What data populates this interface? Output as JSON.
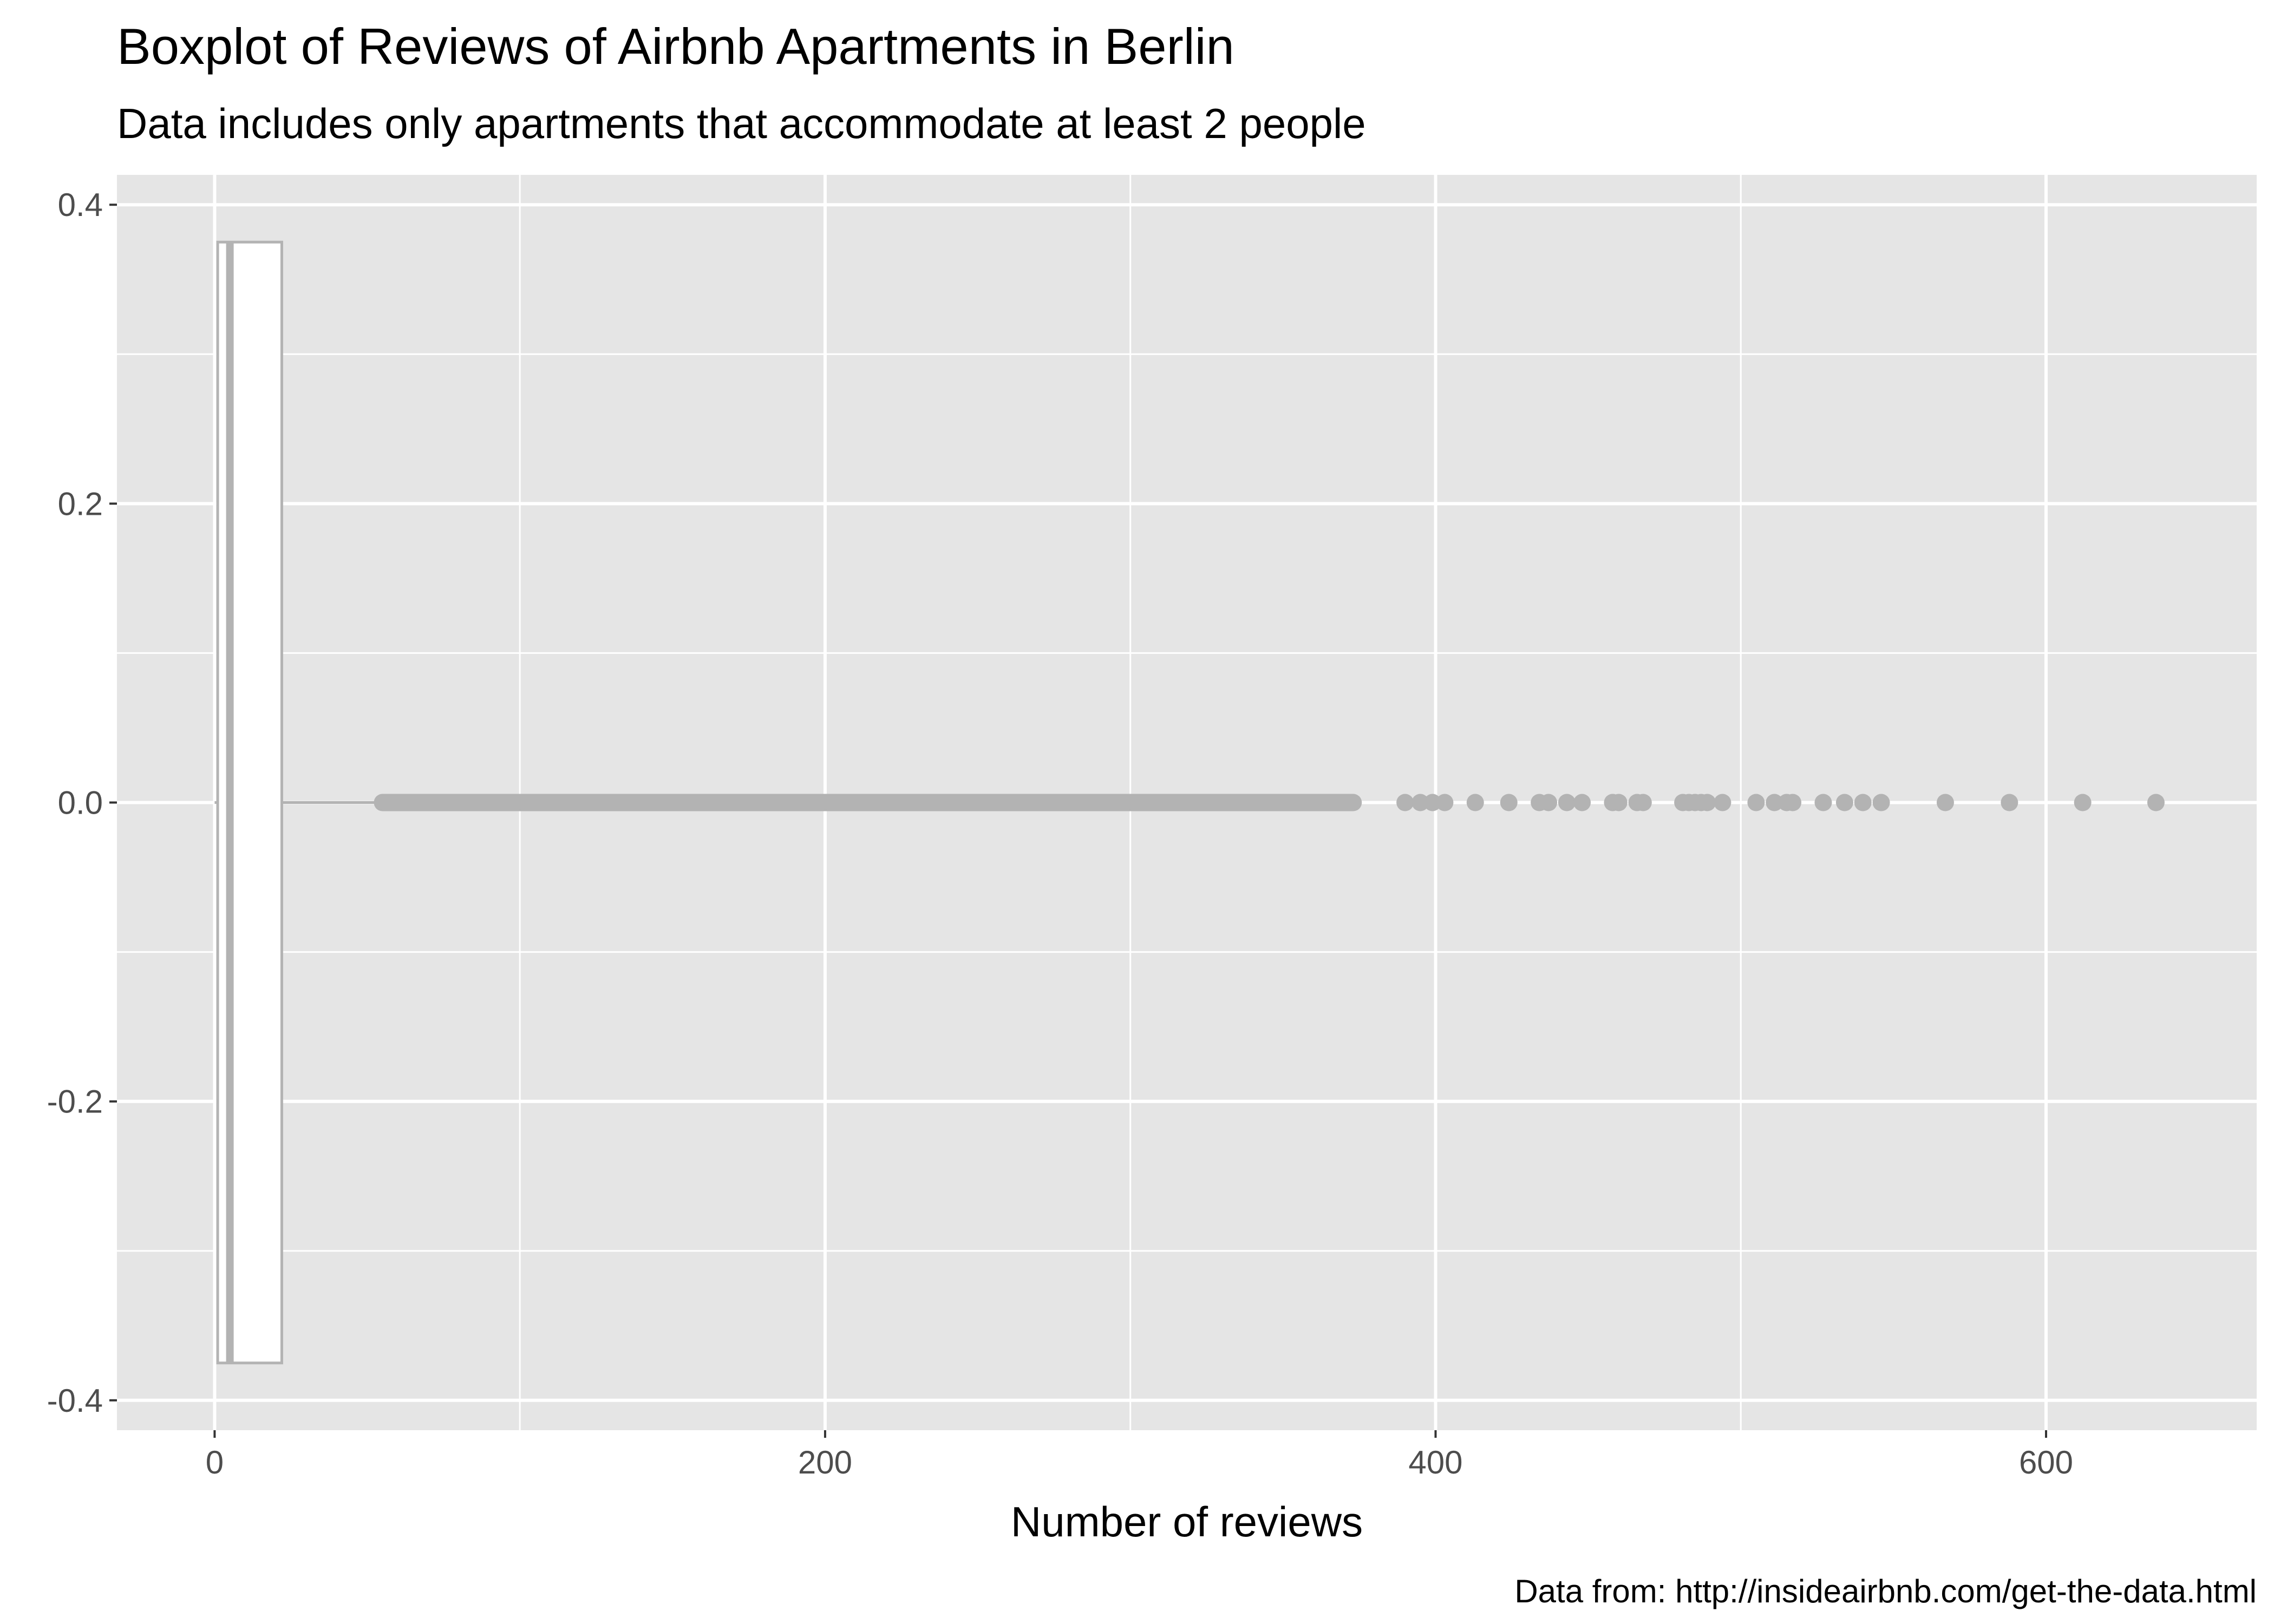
{
  "chart_data": {
    "type": "boxplot",
    "title": "Boxplot of Reviews of Airbnb Apartments in Berlin",
    "subtitle": "Data includes only apartments that accommodate at least 2 people",
    "xlabel": "Number of reviews",
    "ylabel": "",
    "caption": "Data from: http://insideairbnb.com/get-the-data.html",
    "xlim": [
      -32,
      669
    ],
    "ylim": [
      -0.42,
      0.42
    ],
    "x_ticks": [
      0,
      200,
      400,
      600
    ],
    "x_tick_labels": [
      "0",
      "200",
      "400",
      "600"
    ],
    "y_ticks": [
      0.4,
      0.2,
      0.0,
      -0.2,
      -0.4
    ],
    "y_tick_labels": [
      "0.4",
      "0.2",
      "0.0",
      "-0.2",
      "-0.4"
    ],
    "grid": true,
    "colors": {
      "panel": "#e5e5e5",
      "grid": "#ffffff",
      "box_fill": "#ffffff",
      "box_stroke": "#b3b3b3",
      "outlier": "#b3b3b3",
      "tick_text": "#4d4d4d"
    },
    "box": {
      "min": 0,
      "q1": 1,
      "median": 5,
      "q3": 22,
      "whisker_high": 55,
      "y_half_width": 0.375,
      "outliers_dense_range": [
        55,
        373
      ],
      "outliers": [
        390,
        395,
        399,
        403,
        413,
        424,
        434,
        437,
        443,
        448,
        458,
        460,
        466,
        468,
        481,
        483,
        485,
        487,
        489,
        494,
        505,
        511,
        515,
        517,
        527,
        534,
        540,
        546,
        567,
        588,
        612,
        636
      ]
    }
  }
}
